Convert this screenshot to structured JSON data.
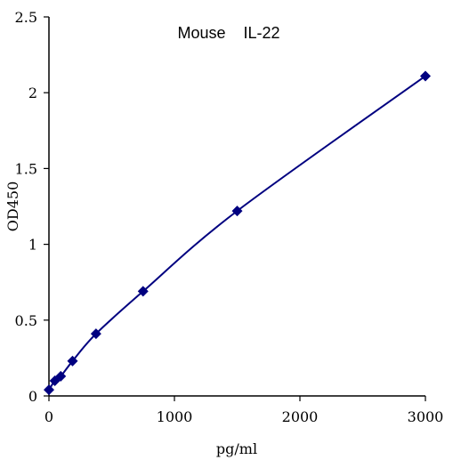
{
  "chart_data": {
    "type": "scatter",
    "title": "Mouse    IL-22",
    "xlabel": "pg/ml",
    "ylabel": "OD450",
    "xlim": [
      0,
      3000
    ],
    "ylim": [
      0,
      2.5
    ],
    "x_ticks": [
      0,
      1000,
      2000,
      3000
    ],
    "y_ticks": [
      0,
      0.5,
      1,
      1.5,
      2,
      2.5
    ],
    "x_tick_labels": [
      "0",
      "1000",
      "2000",
      "3000"
    ],
    "y_tick_labels": [
      "0",
      "0.5",
      "1",
      "1.5",
      "2",
      "2.5"
    ],
    "grid": false,
    "legend": "none",
    "series": [
      {
        "x": [
          0,
          47,
          94,
          188,
          375,
          750,
          1500,
          3000
        ],
        "y": [
          0.04,
          0.1,
          0.13,
          0.23,
          0.41,
          0.69,
          1.22,
          2.11
        ],
        "marker": "diamond",
        "smooth_line": true,
        "color": "#000080"
      }
    ]
  }
}
